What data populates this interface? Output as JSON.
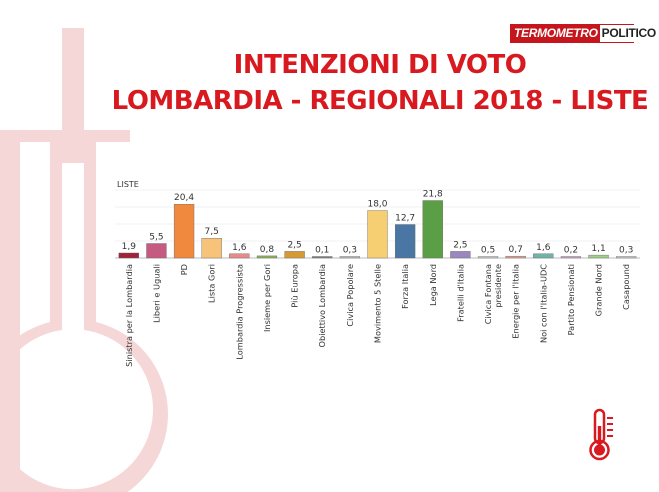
{
  "brand": {
    "part1": "TERMOMETRO",
    "part2": "POLITICO"
  },
  "heading": {
    "line1": "INTENZIONI DI VOTO",
    "line2": "LOMBARDIA - REGIONALI 2018 - LISTE"
  },
  "colors": {
    "accent": "#d8191f",
    "decor": "#f6d7d8"
  },
  "icon": "thermometer-icon",
  "chart_data": {
    "type": "bar",
    "title": "LISTE",
    "categories": [
      "Sinistra per la Lombardia",
      "Liberi e Uguali",
      "PD",
      "Lista Gori",
      "Lombardia Progressista",
      "Insieme per Gori",
      "Più Europa",
      "Obiettivo Lombardia",
      "Civica Popolare",
      "Movimento 5 Stelle",
      "Forza Italia",
      "Lega Nord",
      "Fratelli d'Italia",
      "Civica Fontana presidente",
      "Energie per l'Italia",
      "Noi con l'Italia-UDC",
      "Partito Pensionati",
      "Grande Nord",
      "Casapound"
    ],
    "values": [
      1.9,
      5.5,
      20.4,
      7.5,
      1.6,
      0.8,
      2.5,
      0.1,
      0.3,
      18.0,
      12.7,
      21.8,
      2.5,
      0.5,
      0.7,
      1.6,
      0.2,
      1.1,
      0.3
    ],
    "labels": [
      "1,9",
      "5,5",
      "20,4",
      "7,5",
      "1,6",
      "0,8",
      "2,5",
      "0,1",
      "0,3",
      "18,0",
      "12,7",
      "21,8",
      "2,5",
      "0,5",
      "0,7",
      "1,6",
      "0,2",
      "1,1",
      "0,3"
    ],
    "colors": [
      "#a1223a",
      "#c65b82",
      "#f0883e",
      "#f7c27a",
      "#e88a86",
      "#8cae5a",
      "#d69a33",
      "#7f7f7f",
      "#b9b9b9",
      "#f5cf72",
      "#4a76a3",
      "#5a9e46",
      "#9b86c0",
      "#cccccc",
      "#dda090",
      "#6fb2a7",
      "#c9a2c6",
      "#9dcf88",
      "#c7c7c7"
    ],
    "ylim": [
      0,
      22
    ],
    "grid": true
  }
}
